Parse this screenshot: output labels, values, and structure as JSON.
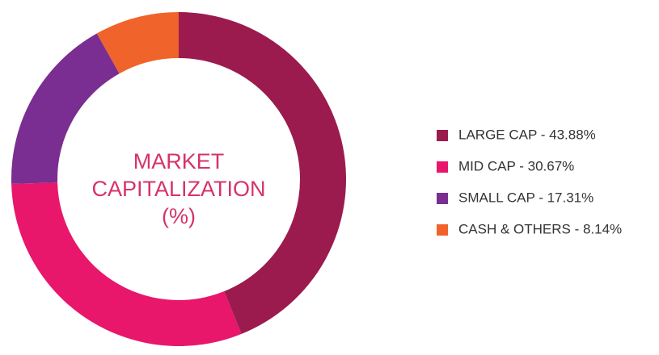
{
  "chart_data": {
    "type": "donut",
    "title": [
      "MARKET",
      "CAPITALIZATION",
      "(%)"
    ],
    "categories": [
      "LARGE CAP -  43.88%",
      "MID CAP - 30.67%",
      "SMALL CAP -  17.31%",
      "CASH & OTHERS - 8.14%"
    ],
    "values": [
      43.88,
      30.67,
      17.31,
      8.14
    ],
    "colors": [
      "#9b1b4f",
      "#e8176b",
      "#7a2e91",
      "#f0632a"
    ]
  }
}
